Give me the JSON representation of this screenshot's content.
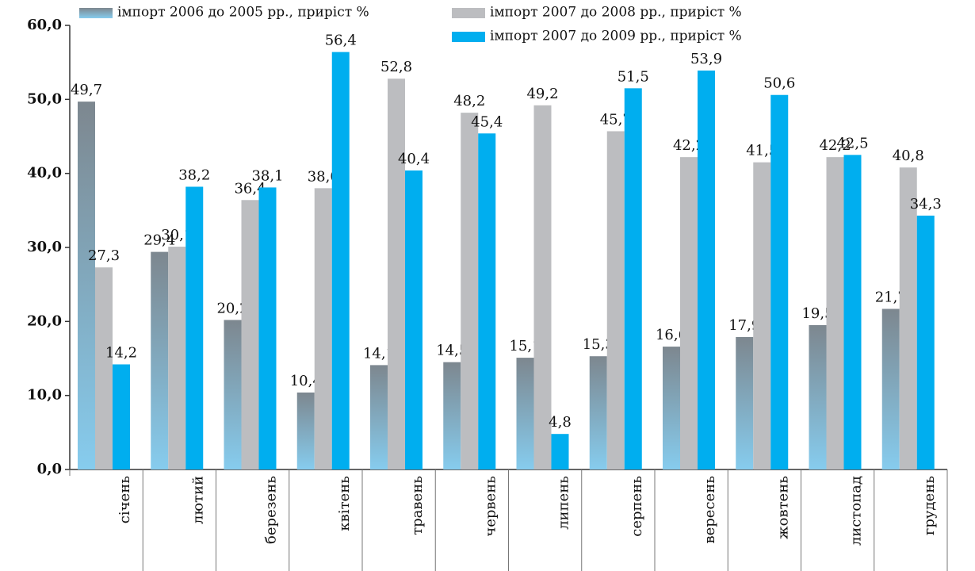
{
  "chart_data": {
    "type": "bar",
    "categories": [
      "січень",
      "лютий",
      "березень",
      "квітень",
      "травень",
      "червень",
      "липень",
      "серпень",
      "вересень",
      "жовтень",
      "листопад",
      "грудень"
    ],
    "series": [
      {
        "name": "імпорт 2006 до 2005 рр., приріст %",
        "color": "#7d878f",
        "values": [
          49.7,
          29.4,
          20.2,
          10.4,
          14.1,
          14.5,
          15.1,
          15.3,
          16.6,
          17.9,
          19.5,
          21.7
        ],
        "value_labels": [
          "49,7",
          "29,4",
          "20,2",
          "10,4",
          "14,1",
          "14,5",
          "15,1",
          "15,3",
          "16,6",
          "17,9",
          "19,5",
          "21,7"
        ]
      },
      {
        "name": "імпорт 2007 до 2008 рр., приріст %",
        "color": "#bcbdc0",
        "values": [
          27.3,
          30.1,
          36.4,
          38.0,
          52.8,
          48.2,
          49.2,
          45.7,
          42.2,
          41.5,
          42.2,
          40.8
        ],
        "value_labels": [
          "27,3",
          "30,1",
          "36,4",
          "38,0",
          "52,8",
          "48,2",
          "49,2",
          "45,7",
          "42,2",
          "41,5",
          "42,2",
          "40,8"
        ]
      },
      {
        "name": "імпорт 2007 до 2009 рр., приріст %",
        "color": "#00aeef",
        "values": [
          14.2,
          38.2,
          38.1,
          56.4,
          40.4,
          45.4,
          4.8,
          51.5,
          53.9,
          50.6,
          42.5,
          34.3
        ],
        "value_labels": [
          "14,2",
          "38,2",
          "38,1",
          "56,4",
          "40,4",
          "45,4",
          "4,8",
          "51,5",
          "53,9",
          "50,6",
          "42,5",
          "34,3"
        ]
      }
    ],
    "ylim": [
      0,
      60
    ],
    "yticks": [
      {
        "value": 0,
        "label": "0,0"
      },
      {
        "value": 10,
        "label": "10,0"
      },
      {
        "value": 20,
        "label": "20,0"
      },
      {
        "value": 30,
        "label": "30,0"
      },
      {
        "value": 40,
        "label": "40,0"
      },
      {
        "value": 50,
        "label": "50,0"
      },
      {
        "value": 60,
        "label": "60,0"
      }
    ],
    "grid": false
  }
}
